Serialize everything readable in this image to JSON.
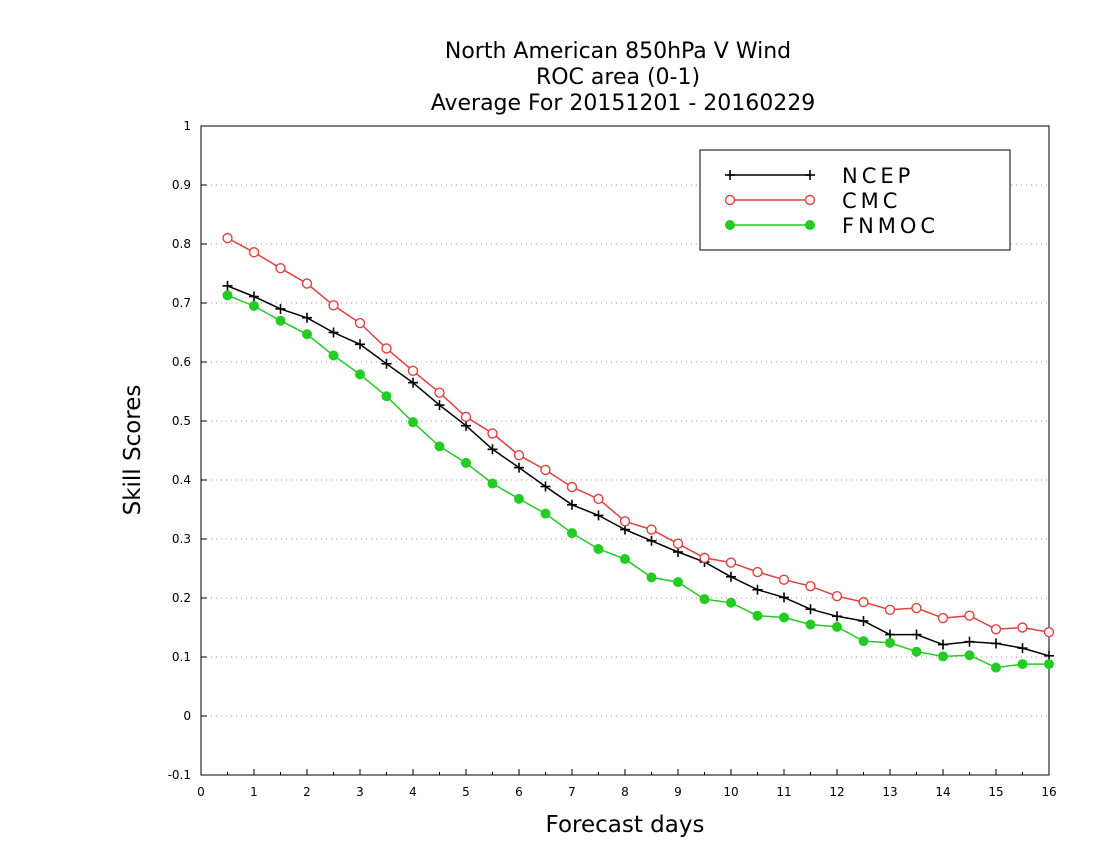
{
  "chart_data": {
    "type": "line",
    "title_lines": [
      "North American 850hPa V Wind",
      "ROC area (0-1)",
      "Average For 20151201 - 20160229"
    ],
    "xlabel": "Forecast days",
    "ylabel": "Skill Scores",
    "xlim": [
      0,
      16
    ],
    "ylim": [
      -0.1,
      1
    ],
    "xticks": [
      "0",
      "1",
      "2",
      "3",
      "4",
      "5",
      "6",
      "7",
      "8",
      "9",
      "10",
      "11",
      "12",
      "13",
      "14",
      "15",
      "16"
    ],
    "yticks": [
      "-0.1",
      "0",
      "0.1",
      "0.2",
      "0.3",
      "0.4",
      "0.5",
      "0.6",
      "0.7",
      "0.8",
      "0.9",
      "1"
    ],
    "grid": "horizontal dotted",
    "legend_position": "top-right",
    "x": [
      0.5,
      1,
      1.5,
      2,
      2.5,
      3,
      3.5,
      4,
      4.5,
      5,
      5.5,
      6,
      6.5,
      7,
      7.5,
      8,
      8.5,
      9,
      9.5,
      10,
      10.5,
      11,
      11.5,
      12,
      12.5,
      13,
      13.5,
      14,
      14.5,
      15,
      15.5,
      16
    ],
    "series": [
      {
        "name": "NCEP",
        "color": "#000000",
        "marker": "plus",
        "values": [
          0.729,
          0.711,
          0.69,
          0.675,
          0.65,
          0.63,
          0.597,
          0.565,
          0.527,
          0.492,
          0.452,
          0.421,
          0.389,
          0.358,
          0.34,
          0.316,
          0.297,
          0.278,
          0.261,
          0.236,
          0.214,
          0.201,
          0.181,
          0.169,
          0.161,
          0.138,
          0.138,
          0.121,
          0.126,
          0.123,
          0.115,
          0.102
        ]
      },
      {
        "name": "CMC",
        "color": "#e0403f",
        "marker": "open-circle",
        "values": [
          0.81,
          0.786,
          0.759,
          0.733,
          0.696,
          0.666,
          0.623,
          0.585,
          0.548,
          0.507,
          0.479,
          0.442,
          0.417,
          0.388,
          0.368,
          0.33,
          0.316,
          0.292,
          0.268,
          0.26,
          0.244,
          0.231,
          0.22,
          0.203,
          0.193,
          0.18,
          0.183,
          0.166,
          0.17,
          0.147,
          0.15,
          0.142
        ]
      },
      {
        "name": "FNMOC",
        "color": "#22cc22",
        "marker": "filled-circle",
        "values": [
          0.713,
          0.695,
          0.67,
          0.647,
          0.611,
          0.579,
          0.542,
          0.498,
          0.457,
          0.429,
          0.394,
          0.368,
          0.343,
          0.31,
          0.283,
          0.266,
          0.235,
          0.227,
          0.198,
          0.192,
          0.17,
          0.167,
          0.155,
          0.151,
          0.127,
          0.124,
          0.109,
          0.101,
          0.103,
          0.082,
          0.088,
          0.088
        ]
      }
    ]
  }
}
